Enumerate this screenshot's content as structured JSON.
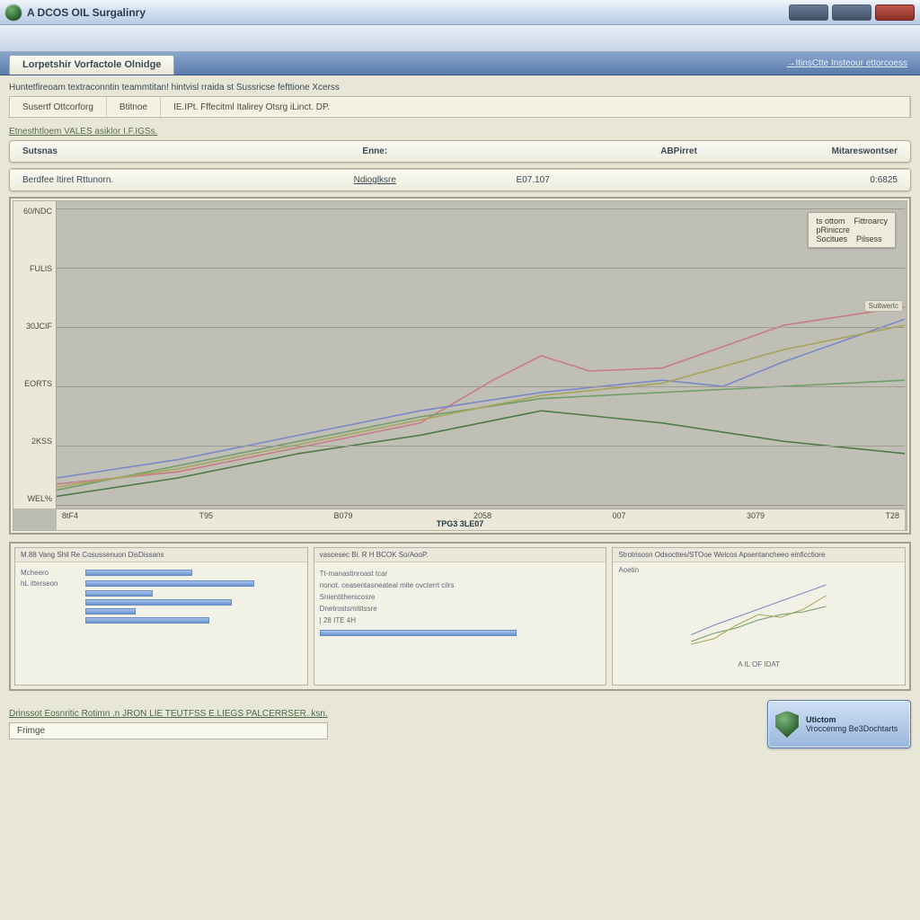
{
  "window": {
    "title": "A DCOS OIL Surgalinry",
    "btn_min": "min",
    "btn_max": "max",
    "btn_close": "close"
  },
  "tabstrip": {
    "active_tab": "Lorpetshir Vorfactole Olnidge",
    "right_link": "→ItinsCtte Insteour ettorcoess"
  },
  "header": {
    "description": "Huntetfireoam textraconntin teammtitan! hintvisl rraida st Sussricse fefttione Xcerss",
    "filters": {
      "c1": "Susertf Ottcorforg",
      "c2": "Btitnoe",
      "c3": "IE.IPt. Fffecitml Italirey Otsrg iLinct. DP."
    }
  },
  "subtitle": "Etnesthtloem VALES asiklor I.F.IGSs.",
  "table": {
    "columns": [
      "Sutsnas",
      "Enne:",
      "",
      "ABPirret",
      "Mitareswontser"
    ],
    "rows": [
      [
        "Berdfee Itiret Rttunorn.",
        "Ndioglksre",
        "E07.107",
        "",
        "0:6825"
      ]
    ]
  },
  "chart": {
    "type": "line",
    "background_color": "#c0bfb5",
    "grid_color": "#9d9c8f",
    "axis_bg": "#e9e8d9",
    "ylim": [
      0,
      100
    ],
    "ylabels": [
      "60/NDC",
      "FULlS",
      "30JCIF",
      "EORTS",
      "2KSS",
      "WEL%"
    ],
    "xlim": [
      0,
      7
    ],
    "xlabels": [
      "8tF4",
      "T95",
      "B079",
      "2058",
      "007",
      "3079",
      "T28"
    ],
    "xtitle": "TPG3 3LE07",
    "lineWidth": 1.6,
    "series": [
      {
        "name": "red",
        "color": "#c97b84",
        "points": [
          [
            0,
            8
          ],
          [
            1,
            12
          ],
          [
            2,
            20
          ],
          [
            3,
            28
          ],
          [
            3.6,
            42
          ],
          [
            4.0,
            50
          ],
          [
            4.4,
            45
          ],
          [
            5,
            46
          ],
          [
            6,
            60
          ],
          [
            7,
            66
          ]
        ]
      },
      {
        "name": "blue",
        "color": "#7a88c9",
        "points": [
          [
            0,
            10
          ],
          [
            1,
            16
          ],
          [
            2,
            24
          ],
          [
            3,
            32
          ],
          [
            4,
            38
          ],
          [
            5,
            42
          ],
          [
            5.5,
            40
          ],
          [
            6,
            48
          ],
          [
            7,
            62
          ]
        ]
      },
      {
        "name": "green1",
        "color": "#6f9e6a",
        "points": [
          [
            0,
            6
          ],
          [
            1,
            14
          ],
          [
            2,
            22
          ],
          [
            3,
            30
          ],
          [
            4,
            36
          ],
          [
            5,
            38
          ],
          [
            6,
            40
          ],
          [
            7,
            42
          ]
        ]
      },
      {
        "name": "green2",
        "color": "#4d7b48",
        "points": [
          [
            0,
            4
          ],
          [
            1,
            10
          ],
          [
            2,
            18
          ],
          [
            3,
            24
          ],
          [
            4,
            32
          ],
          [
            4.5,
            30
          ],
          [
            5,
            28
          ],
          [
            6,
            22
          ],
          [
            7,
            18
          ]
        ]
      },
      {
        "name": "olive",
        "color": "#a6a55a",
        "points": [
          [
            0,
            7
          ],
          [
            1,
            13
          ],
          [
            2,
            21
          ],
          [
            3,
            29
          ],
          [
            4,
            37
          ],
          [
            5,
            41
          ],
          [
            6,
            52
          ],
          [
            7,
            60
          ]
        ]
      }
    ],
    "legend": {
      "rows": [
        {
          "l1": "ts ottom",
          "l2": "Fittroarcy"
        },
        {
          "l1": "pRiniccre",
          "l2": ""
        },
        {
          "l1": "Socitues",
          "l2": "Pilsess"
        }
      ]
    },
    "annot1": "Suttwertc",
    "annot2": ""
  },
  "thumbs": [
    {
      "title": "M.88   Vang Shil Re Cosussenuon DisDissans",
      "bars": [
        38,
        60,
        24,
        52,
        18,
        44
      ],
      "labels": [
        "Mcheero",
        "hL itterseon",
        "",
        "",
        "",
        ""
      ]
    },
    {
      "title": "vascesec Bi. R H BCOK So/AooP.",
      "lines": [
        "Tt-manastinroast tcar",
        "nonot. ceasentasneateal mite ovcterrt cilrs",
        "Snientitherscosre",
        "Dnetrostsmititssre",
        "| 28 ITE 4H"
      ],
      "bar": 70
    },
    {
      "title": "Strotrisosn Odsocttes/STOoe Welcos Apsentancheeo einficctiore",
      "label": "Aoetin",
      "mini_chart": {
        "colors": [
          "#7a88c9",
          "#6f9e6a",
          "#a6a55a"
        ],
        "series": [
          [
            [
              0,
              15
            ],
            [
              1,
              22
            ],
            [
              2,
              28
            ],
            [
              3,
              34
            ],
            [
              4,
              40
            ],
            [
              5,
              46
            ],
            [
              6,
              52
            ]
          ],
          [
            [
              0,
              10
            ],
            [
              1,
              16
            ],
            [
              2,
              20
            ],
            [
              3,
              26
            ],
            [
              4,
              30
            ],
            [
              5,
              32
            ],
            [
              6,
              36
            ]
          ],
          [
            [
              0,
              8
            ],
            [
              1,
              12
            ],
            [
              2,
              22
            ],
            [
              3,
              30
            ],
            [
              4,
              28
            ],
            [
              5,
              34
            ],
            [
              6,
              44
            ]
          ]
        ],
        "caption": "A IL OF IDAT"
      }
    }
  ],
  "footer": {
    "link": "Drinssot Eosnritic Rotimn .n JRON LIE TEUTFSS E.LIEGS PALCERRSER. ksn.",
    "field_label": "Frimge",
    "badge_title": "Utictom",
    "badge_sub": "Vroccenmg Be3Dochtarts"
  }
}
